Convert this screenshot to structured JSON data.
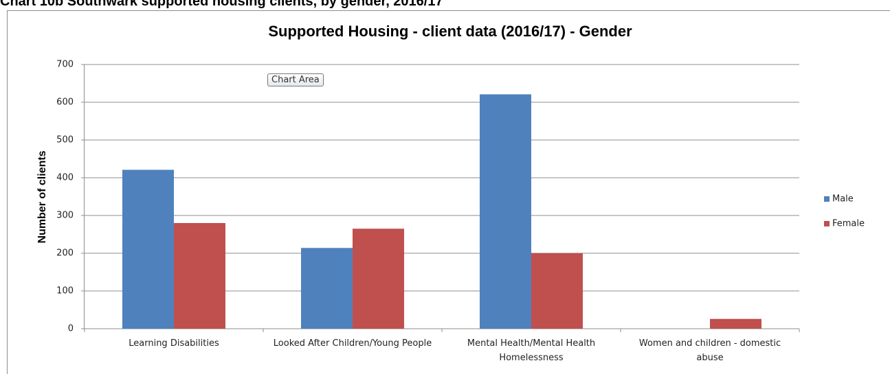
{
  "heading": "Chart 10b  Southwark supported housing clients, by gender, 2016/17",
  "tooltip": "Chart Area",
  "chart_data": {
    "type": "bar",
    "title": "Supported Housing  - client data (2016/17) - Gender",
    "y_label": "Number of clients",
    "categories": [
      "Learning Disabilities",
      "Looked After Children/Young People",
      "Mental Health/Mental Health Homelessness",
      "Women and children - domestic abuse"
    ],
    "series": [
      {
        "name": "Male",
        "color": "#4f81bd",
        "values": [
          421,
          214,
          621,
          0
        ]
      },
      {
        "name": "Female",
        "color": "#c0504d",
        "values": [
          280,
          265,
          200,
          26
        ]
      }
    ],
    "ylim": [
      0,
      700
    ],
    "yticks": [
      0,
      100,
      200,
      300,
      400,
      500,
      600,
      700
    ],
    "grid": true,
    "legend": "right"
  }
}
